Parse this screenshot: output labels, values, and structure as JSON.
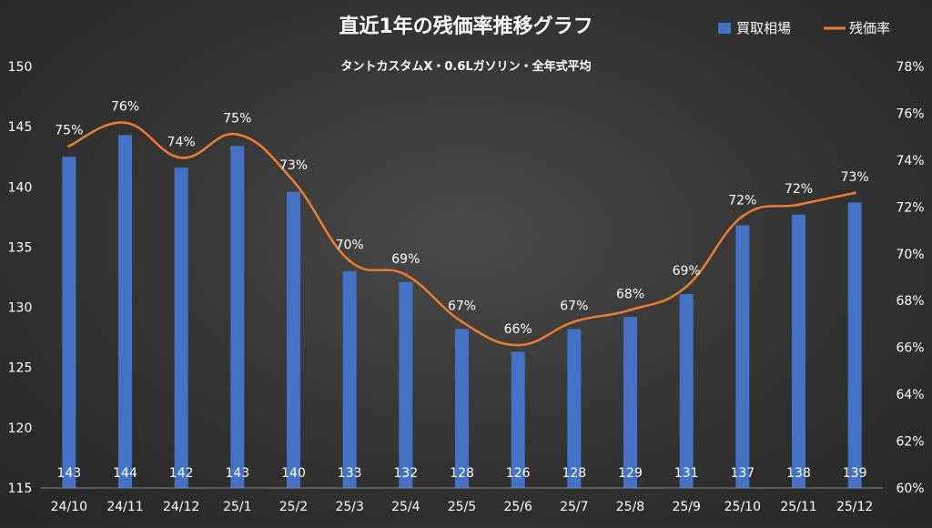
{
  "chart_data": {
    "type": "bar+line",
    "title": "直近1年の残価率推移グラフ",
    "subtitle": "タントカスタムX・0.6Lガソリン・全年式平均",
    "categories": [
      "24/10",
      "24/11",
      "24/12",
      "25/1",
      "25/2",
      "25/3",
      "25/4",
      "25/5",
      "25/6",
      "25/7",
      "25/8",
      "25/9",
      "25/10",
      "25/11",
      "25/12"
    ],
    "series": [
      {
        "name": "買取相場",
        "type": "bar",
        "axis": "left",
        "color": "#4472c4",
        "values": [
          142.5,
          144.3,
          141.6,
          143.4,
          139.6,
          133.0,
          132.1,
          128.2,
          126.3,
          128.2,
          129.2,
          131.1,
          136.8,
          137.7,
          138.7
        ],
        "labels": [
          "143",
          "144",
          "142",
          "143",
          "140",
          "133",
          "132",
          "128",
          "126",
          "128",
          "129",
          "131",
          "137",
          "138",
          "139"
        ]
      },
      {
        "name": "残価率",
        "type": "line",
        "axis": "right",
        "color": "#ed7d31",
        "values": [
          74.6,
          75.6,
          74.1,
          75.1,
          73.1,
          69.7,
          69.1,
          67.1,
          66.1,
          67.1,
          67.6,
          68.6,
          71.6,
          72.1,
          72.6
        ],
        "labels": [
          "75%",
          "76%",
          "74%",
          "75%",
          "73%",
          "70%",
          "69%",
          "67%",
          "66%",
          "67%",
          "68%",
          "69%",
          "72%",
          "72%",
          "73%"
        ]
      }
    ],
    "y_left": {
      "min": 115,
      "max": 150,
      "ticks": [
        "115",
        "120",
        "125",
        "130",
        "135",
        "140",
        "145",
        "150"
      ]
    },
    "y_right": {
      "min": 60,
      "max": 78,
      "ticks": [
        "60%",
        "62%",
        "64%",
        "66%",
        "68%",
        "70%",
        "72%",
        "74%",
        "76%",
        "78%"
      ]
    },
    "legend_position": "top-right",
    "grid": false
  }
}
